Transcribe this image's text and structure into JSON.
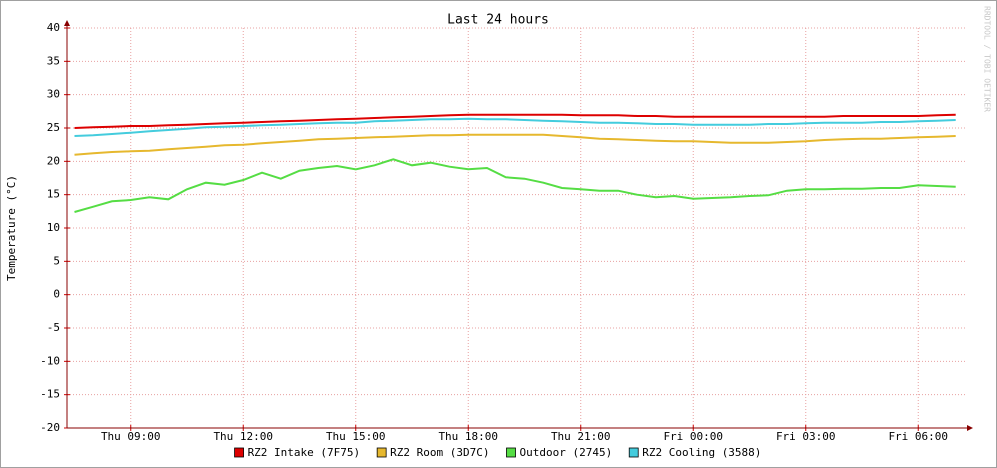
{
  "chart_data": {
    "type": "line",
    "title": "Last 24 hours",
    "y_label": "Temperature (°C)",
    "watermark": "RRDTOOL / TOBI OETIKER",
    "x": [
      "Thu 07:30",
      "Thu 08:00",
      "Thu 08:30",
      "Thu 09:00",
      "Thu 09:30",
      "Thu 10:00",
      "Thu 10:30",
      "Thu 11:00",
      "Thu 11:30",
      "Thu 12:00",
      "Thu 12:30",
      "Thu 13:00",
      "Thu 13:30",
      "Thu 14:00",
      "Thu 14:30",
      "Thu 15:00",
      "Thu 15:30",
      "Thu 16:00",
      "Thu 16:30",
      "Thu 17:00",
      "Thu 17:30",
      "Thu 18:00",
      "Thu 18:30",
      "Thu 19:00",
      "Thu 19:30",
      "Thu 20:00",
      "Thu 20:30",
      "Thu 21:00",
      "Thu 21:30",
      "Thu 22:00",
      "Thu 22:30",
      "Thu 23:00",
      "Thu 23:30",
      "Fri 00:00",
      "Fri 00:30",
      "Fri 01:00",
      "Fri 01:30",
      "Fri 02:00",
      "Fri 02:30",
      "Fri 03:00",
      "Fri 03:30",
      "Fri 04:00",
      "Fri 04:30",
      "Fri 05:00",
      "Fri 05:30",
      "Fri 06:00",
      "Fri 06:30",
      "Fri 07:00"
    ],
    "xlim": [
      "Thu 07:18",
      "Fri 07:18"
    ],
    "xticks": [
      "Thu 09:00",
      "Thu 12:00",
      "Thu 15:00",
      "Thu 18:00",
      "Thu 21:00",
      "Fri 00:00",
      "Fri 03:00",
      "Fri 06:00"
    ],
    "ylim": [
      -20,
      40
    ],
    "yticks": [
      -20,
      -15,
      -10,
      -5,
      0,
      5,
      10,
      15,
      20,
      25,
      30,
      35,
      40
    ],
    "grid": true,
    "series": [
      {
        "name": "RZ2 Intake (7F75)",
        "color": "#dd0000",
        "values": [
          25.0,
          25.1,
          25.2,
          25.3,
          25.3,
          25.4,
          25.5,
          25.6,
          25.7,
          25.8,
          25.9,
          26.0,
          26.1,
          26.2,
          26.3,
          26.4,
          26.5,
          26.6,
          26.7,
          26.8,
          26.9,
          27.0,
          27.0,
          27.0,
          27.0,
          27.0,
          27.0,
          26.9,
          26.9,
          26.9,
          26.8,
          26.8,
          26.7,
          26.7,
          26.7,
          26.7,
          26.7,
          26.7,
          26.7,
          26.7,
          26.7,
          26.8,
          26.8,
          26.8,
          26.8,
          26.8,
          26.9,
          27.0
        ]
      },
      {
        "name": "RZ2 Room (3D7C)",
        "color": "#e6b82e",
        "values": [
          21.0,
          21.2,
          21.4,
          21.5,
          21.6,
          21.8,
          22.0,
          22.2,
          22.4,
          22.5,
          22.7,
          22.9,
          23.1,
          23.3,
          23.4,
          23.5,
          23.6,
          23.7,
          23.8,
          23.9,
          23.9,
          24.0,
          24.0,
          24.0,
          24.0,
          24.0,
          23.8,
          23.6,
          23.4,
          23.3,
          23.2,
          23.1,
          23.0,
          23.0,
          22.9,
          22.8,
          22.8,
          22.8,
          22.9,
          23.0,
          23.2,
          23.3,
          23.4,
          23.4,
          23.5,
          23.6,
          23.7,
          23.8
        ]
      },
      {
        "name": "Outdoor (2745)",
        "color": "#55dd44",
        "values": [
          12.4,
          13.2,
          14.0,
          14.2,
          14.6,
          14.3,
          15.8,
          16.8,
          16.5,
          17.2,
          18.3,
          17.4,
          18.6,
          19.0,
          19.3,
          18.8,
          19.4,
          20.3,
          19.4,
          19.8,
          19.2,
          18.8,
          19.0,
          17.6,
          17.4,
          16.8,
          16.0,
          15.8,
          15.6,
          15.6,
          15.0,
          14.6,
          14.8,
          14.4,
          14.5,
          14.6,
          14.8,
          14.9,
          15.6,
          15.8,
          15.8,
          15.9,
          15.9,
          16.0,
          16.0,
          16.4,
          16.3,
          16.2
        ]
      },
      {
        "name": "RZ2 Cooling (3588)",
        "color": "#44ccdd",
        "values": [
          23.8,
          23.9,
          24.1,
          24.3,
          24.5,
          24.7,
          24.9,
          25.1,
          25.2,
          25.3,
          25.4,
          25.5,
          25.6,
          25.7,
          25.8,
          25.8,
          26.0,
          26.1,
          26.2,
          26.3,
          26.3,
          26.4,
          26.3,
          26.3,
          26.2,
          26.1,
          26.0,
          25.9,
          25.8,
          25.8,
          25.7,
          25.6,
          25.6,
          25.5,
          25.5,
          25.5,
          25.5,
          25.6,
          25.6,
          25.7,
          25.8,
          25.8,
          25.8,
          25.9,
          25.9,
          26.0,
          26.1,
          26.2
        ]
      }
    ]
  }
}
